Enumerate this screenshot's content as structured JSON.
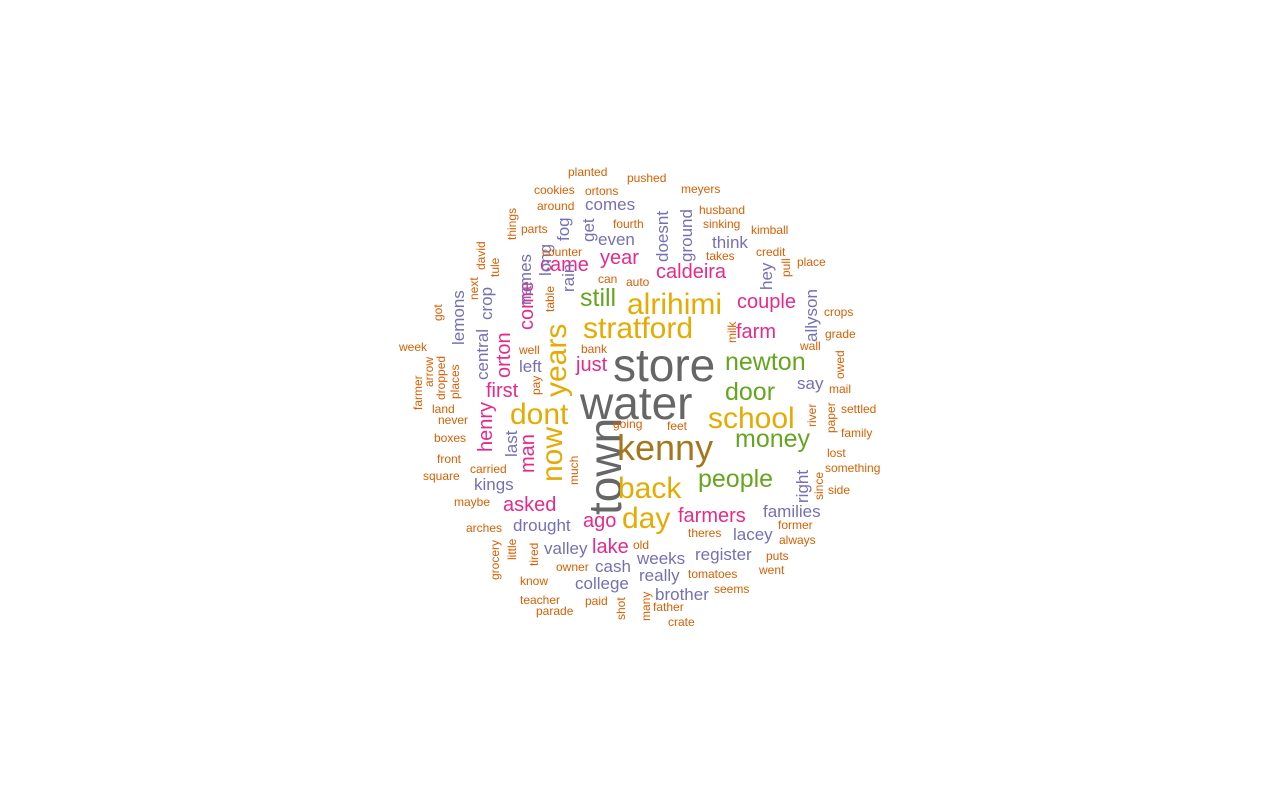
{
  "wordcloud": {
    "colors": {
      "c1": "#666666",
      "c2": "#a6761d",
      "c3": "#e6ab02",
      "c4": "#66a61e",
      "c5": "#e7298a",
      "c6": "#7570b3",
      "c7": "#d95f02"
    },
    "words": [
      {
        "text": "store",
        "color": "c1",
        "weight": 10
      },
      {
        "text": "water",
        "color": "c1",
        "weight": 10
      },
      {
        "text": "town",
        "color": "c1",
        "weight": 10
      },
      {
        "text": "kenny",
        "color": "c2",
        "weight": 9
      },
      {
        "text": "stratford",
        "color": "c3",
        "weight": 7
      },
      {
        "text": "alrihimi",
        "color": "c3",
        "weight": 7
      },
      {
        "text": "years",
        "color": "c3",
        "weight": 7
      },
      {
        "text": "dont",
        "color": "c3",
        "weight": 7
      },
      {
        "text": "now",
        "color": "c3",
        "weight": 7
      },
      {
        "text": "school",
        "color": "c3",
        "weight": 7
      },
      {
        "text": "back",
        "color": "c3",
        "weight": 7
      },
      {
        "text": "day",
        "color": "c3",
        "weight": 7
      },
      {
        "text": "newton",
        "color": "c4",
        "weight": 6
      },
      {
        "text": "door",
        "color": "c4",
        "weight": 6
      },
      {
        "text": "money",
        "color": "c4",
        "weight": 6
      },
      {
        "text": "people",
        "color": "c4",
        "weight": 6
      },
      {
        "text": "still",
        "color": "c4",
        "weight": 6
      },
      {
        "text": "caldeira",
        "color": "c5",
        "weight": 5
      },
      {
        "text": "farm",
        "color": "c5",
        "weight": 5
      },
      {
        "text": "couple",
        "color": "c5",
        "weight": 5
      },
      {
        "text": "come",
        "color": "c5",
        "weight": 5
      },
      {
        "text": "orton",
        "color": "c5",
        "weight": 5
      },
      {
        "text": "man",
        "color": "c5",
        "weight": 5
      },
      {
        "text": "came",
        "color": "c5",
        "weight": 5
      },
      {
        "text": "year",
        "color": "c5",
        "weight": 5
      },
      {
        "text": "just",
        "color": "c5",
        "weight": 5
      },
      {
        "text": "first",
        "color": "c5",
        "weight": 5
      },
      {
        "text": "henry",
        "color": "c5",
        "weight": 5
      },
      {
        "text": "asked",
        "color": "c5",
        "weight": 5
      },
      {
        "text": "ago",
        "color": "c5",
        "weight": 5
      },
      {
        "text": "farmers",
        "color": "c5",
        "weight": 5
      },
      {
        "text": "lake",
        "color": "c5",
        "weight": 5
      },
      {
        "text": "comes",
        "color": "c6",
        "weight": 4
      },
      {
        "text": "even",
        "color": "c6",
        "weight": 4
      },
      {
        "text": "fog",
        "color": "c6",
        "weight": 4
      },
      {
        "text": "get",
        "color": "c6",
        "weight": 4
      },
      {
        "text": "doesnt",
        "color": "c6",
        "weight": 4
      },
      {
        "text": "ground",
        "color": "c6",
        "weight": 4
      },
      {
        "text": "think",
        "color": "c6",
        "weight": 4
      },
      {
        "text": "hey",
        "color": "c6",
        "weight": 4
      },
      {
        "text": "allyson",
        "color": "c6",
        "weight": 4
      },
      {
        "text": "say",
        "color": "c6",
        "weight": 4
      },
      {
        "text": "right",
        "color": "c6",
        "weight": 4
      },
      {
        "text": "families",
        "color": "c6",
        "weight": 4
      },
      {
        "text": "lacey",
        "color": "c6",
        "weight": 4
      },
      {
        "text": "register",
        "color": "c6",
        "weight": 4
      },
      {
        "text": "weeks",
        "color": "c6",
        "weight": 4
      },
      {
        "text": "really",
        "color": "c6",
        "weight": 4
      },
      {
        "text": "brother",
        "color": "c6",
        "weight": 4
      },
      {
        "text": "college",
        "color": "c6",
        "weight": 4
      },
      {
        "text": "cash",
        "color": "c6",
        "weight": 4
      },
      {
        "text": "valley",
        "color": "c6",
        "weight": 4
      },
      {
        "text": "drought",
        "color": "c6",
        "weight": 4
      },
      {
        "text": "kings",
        "color": "c6",
        "weight": 4
      },
      {
        "text": "last",
        "color": "c6",
        "weight": 4
      },
      {
        "text": "left",
        "color": "c6",
        "weight": 4
      },
      {
        "text": "names",
        "color": "c6",
        "weight": 4
      },
      {
        "text": "long",
        "color": "c6",
        "weight": 4
      },
      {
        "text": "rain",
        "color": "c6",
        "weight": 4
      },
      {
        "text": "crop",
        "color": "c6",
        "weight": 4
      },
      {
        "text": "central",
        "color": "c6",
        "weight": 4
      },
      {
        "text": "lemons",
        "color": "c6",
        "weight": 4
      },
      {
        "text": "planted",
        "color": "c7",
        "weight": 1
      },
      {
        "text": "pushed",
        "color": "c7",
        "weight": 1
      },
      {
        "text": "cookies",
        "color": "c7",
        "weight": 1
      },
      {
        "text": "ortons",
        "color": "c7",
        "weight": 1
      },
      {
        "text": "meyers",
        "color": "c7",
        "weight": 1
      },
      {
        "text": "around",
        "color": "c7",
        "weight": 1
      },
      {
        "text": "husband",
        "color": "c7",
        "weight": 1
      },
      {
        "text": "fourth",
        "color": "c7",
        "weight": 1
      },
      {
        "text": "sinking",
        "color": "c7",
        "weight": 1
      },
      {
        "text": "parts",
        "color": "c7",
        "weight": 1
      },
      {
        "text": "kimball",
        "color": "c7",
        "weight": 1
      },
      {
        "text": "things",
        "color": "c7",
        "weight": 1
      },
      {
        "text": "david",
        "color": "c7",
        "weight": 1
      },
      {
        "text": "counter",
        "color": "c7",
        "weight": 1
      },
      {
        "text": "credit",
        "color": "c7",
        "weight": 1
      },
      {
        "text": "tule",
        "color": "c7",
        "weight": 1
      },
      {
        "text": "takes",
        "color": "c7",
        "weight": 1
      },
      {
        "text": "pull",
        "color": "c7",
        "weight": 1
      },
      {
        "text": "place",
        "color": "c7",
        "weight": 1
      },
      {
        "text": "next",
        "color": "c7",
        "weight": 1
      },
      {
        "text": "can",
        "color": "c7",
        "weight": 1
      },
      {
        "text": "auto",
        "color": "c7",
        "weight": 1
      },
      {
        "text": "table",
        "color": "c7",
        "weight": 1
      },
      {
        "text": "got",
        "color": "c7",
        "weight": 1
      },
      {
        "text": "crops",
        "color": "c7",
        "weight": 1
      },
      {
        "text": "milk",
        "color": "c7",
        "weight": 1
      },
      {
        "text": "grade",
        "color": "c7",
        "weight": 1
      },
      {
        "text": "bank",
        "color": "c7",
        "weight": 1
      },
      {
        "text": "week",
        "color": "c7",
        "weight": 1
      },
      {
        "text": "well",
        "color": "c7",
        "weight": 1
      },
      {
        "text": "wall",
        "color": "c7",
        "weight": 1
      },
      {
        "text": "arrow",
        "color": "c7",
        "weight": 1
      },
      {
        "text": "dropped",
        "color": "c7",
        "weight": 1
      },
      {
        "text": "owed",
        "color": "c7",
        "weight": 1
      },
      {
        "text": "places",
        "color": "c7",
        "weight": 1
      },
      {
        "text": "farmer",
        "color": "c7",
        "weight": 1
      },
      {
        "text": "pay",
        "color": "c7",
        "weight": 1
      },
      {
        "text": "mail",
        "color": "c7",
        "weight": 1
      },
      {
        "text": "land",
        "color": "c7",
        "weight": 1
      },
      {
        "text": "river",
        "color": "c7",
        "weight": 1
      },
      {
        "text": "settled",
        "color": "c7",
        "weight": 1
      },
      {
        "text": "never",
        "color": "c7",
        "weight": 1
      },
      {
        "text": "paper",
        "color": "c7",
        "weight": 1
      },
      {
        "text": "going",
        "color": "c7",
        "weight": 1
      },
      {
        "text": "feet",
        "color": "c7",
        "weight": 1
      },
      {
        "text": "family",
        "color": "c7",
        "weight": 1
      },
      {
        "text": "boxes",
        "color": "c7",
        "weight": 1
      },
      {
        "text": "lost",
        "color": "c7",
        "weight": 1
      },
      {
        "text": "front",
        "color": "c7",
        "weight": 1
      },
      {
        "text": "much",
        "color": "c7",
        "weight": 1
      },
      {
        "text": "carried",
        "color": "c7",
        "weight": 1
      },
      {
        "text": "something",
        "color": "c7",
        "weight": 1
      },
      {
        "text": "square",
        "color": "c7",
        "weight": 1
      },
      {
        "text": "since",
        "color": "c7",
        "weight": 1
      },
      {
        "text": "side",
        "color": "c7",
        "weight": 1
      },
      {
        "text": "maybe",
        "color": "c7",
        "weight": 1
      },
      {
        "text": "former",
        "color": "c7",
        "weight": 1
      },
      {
        "text": "arches",
        "color": "c7",
        "weight": 1
      },
      {
        "text": "theres",
        "color": "c7",
        "weight": 1
      },
      {
        "text": "always",
        "color": "c7",
        "weight": 1
      },
      {
        "text": "grocery",
        "color": "c7",
        "weight": 1
      },
      {
        "text": "little",
        "color": "c7",
        "weight": 1
      },
      {
        "text": "tired",
        "color": "c7",
        "weight": 1
      },
      {
        "text": "old",
        "color": "c7",
        "weight": 1
      },
      {
        "text": "puts",
        "color": "c7",
        "weight": 1
      },
      {
        "text": "owner",
        "color": "c7",
        "weight": 1
      },
      {
        "text": "went",
        "color": "c7",
        "weight": 1
      },
      {
        "text": "tomatoes",
        "color": "c7",
        "weight": 1
      },
      {
        "text": "know",
        "color": "c7",
        "weight": 1
      },
      {
        "text": "seems",
        "color": "c7",
        "weight": 1
      },
      {
        "text": "paid",
        "color": "c7",
        "weight": 1
      },
      {
        "text": "teacher",
        "color": "c7",
        "weight": 1
      },
      {
        "text": "many",
        "color": "c7",
        "weight": 1
      },
      {
        "text": "shot",
        "color": "c7",
        "weight": 1
      },
      {
        "text": "father",
        "color": "c7",
        "weight": 1
      },
      {
        "text": "parade",
        "color": "c7",
        "weight": 1
      },
      {
        "text": "crate",
        "color": "c7",
        "weight": 1
      }
    ]
  }
}
